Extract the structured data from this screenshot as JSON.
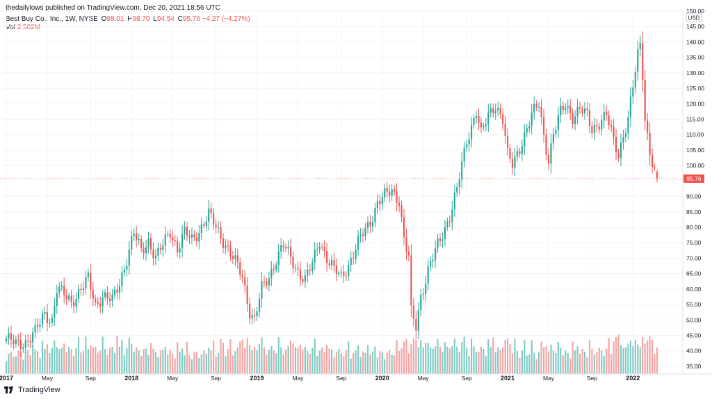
{
  "header": {
    "publisher_text": "thedailylows published on TradingView.com, Dec 20, 2021 18:56 UTC"
  },
  "info": {
    "symbol": "Best Buy Co., Inc., 1W, NYSE",
    "o_label": "O",
    "o_value": "98.01",
    "h_label": "H",
    "h_value": "98.70",
    "l_label": "L",
    "l_value": "94.54",
    "c_label": "C",
    "c_value": "95.76",
    "change": "−4.27 (−4.27%)",
    "vol_label": "Vol",
    "vol_value": "2.502M"
  },
  "footer": {
    "brand": "TradingView"
  },
  "colors": {
    "up": "#26a69a",
    "down": "#ef5350",
    "up_vol": "#80cbc4",
    "down_vol": "#f4a3a3",
    "grid": "#f0f3fa",
    "price_line": "#ef5350"
  },
  "chart_data": {
    "type": "candlestick",
    "title": "Best Buy Co., Inc., 1W, NYSE",
    "currency": "USD",
    "ylim": [
      32.5,
      150
    ],
    "y_ticks": [
      "150.00",
      "145.00",
      "140.00",
      "135.00",
      "130.00",
      "125.00",
      "120.00",
      "115.00",
      "110.00",
      "105.00",
      "100.00",
      "90.00",
      "85.00",
      "80.00",
      "75.00",
      "70.00",
      "65.00",
      "60.00",
      "55.00",
      "50.00",
      "45.00",
      "40.00",
      "35.00"
    ],
    "x_ticks": [
      {
        "label": "2017",
        "week": 0
      },
      {
        "label": "May",
        "week": 17
      },
      {
        "label": "Sep",
        "week": 35
      },
      {
        "label": "2018",
        "week": 52
      },
      {
        "label": "May",
        "week": 69
      },
      {
        "label": "Sep",
        "week": 87
      },
      {
        "label": "2019",
        "week": 104
      },
      {
        "label": "May",
        "week": 121
      },
      {
        "label": "Sep",
        "week": 139
      },
      {
        "label": "2020",
        "week": 156
      },
      {
        "label": "May",
        "week": 173
      },
      {
        "label": "Sep",
        "week": 191
      },
      {
        "label": "2021",
        "week": 208
      },
      {
        "label": "May",
        "week": 225
      },
      {
        "label": "Sep",
        "week": 243
      },
      {
        "label": "2022",
        "week": 260
      }
    ],
    "last_price": 95.76,
    "last_price_label": "95.76",
    "anchors": [
      [
        0,
        44
      ],
      [
        4,
        42
      ],
      [
        8,
        43
      ],
      [
        12,
        46
      ],
      [
        16,
        52
      ],
      [
        19,
        50
      ],
      [
        21,
        60
      ],
      [
        24,
        58
      ],
      [
        27,
        56
      ],
      [
        31,
        60
      ],
      [
        34,
        63
      ],
      [
        37,
        55
      ],
      [
        40,
        58
      ],
      [
        44,
        56
      ],
      [
        47,
        62
      ],
      [
        50,
        70
      ],
      [
        53,
        78
      ],
      [
        56,
        72
      ],
      [
        59,
        76
      ],
      [
        62,
        70
      ],
      [
        65,
        74
      ],
      [
        68,
        79
      ],
      [
        71,
        73
      ],
      [
        74,
        78
      ],
      [
        77,
        76
      ],
      [
        80,
        79
      ],
      [
        84,
        84
      ],
      [
        87,
        80
      ],
      [
        90,
        76
      ],
      [
        94,
        70
      ],
      [
        98,
        64
      ],
      [
        101,
        53
      ],
      [
        103,
        50
      ],
      [
        106,
        60
      ],
      [
        109,
        64
      ],
      [
        112,
        70
      ],
      [
        115,
        74
      ],
      [
        118,
        70
      ],
      [
        121,
        66
      ],
      [
        124,
        63
      ],
      [
        127,
        68
      ],
      [
        130,
        76
      ],
      [
        133,
        70
      ],
      [
        136,
        66
      ],
      [
        139,
        64
      ],
      [
        142,
        68
      ],
      [
        145,
        73
      ],
      [
        148,
        78
      ],
      [
        151,
        82
      ],
      [
        154,
        88
      ],
      [
        157,
        90
      ],
      [
        160,
        92
      ],
      [
        163,
        89
      ],
      [
        165,
        76
      ],
      [
        167,
        70
      ],
      [
        168,
        52
      ],
      [
        170,
        48
      ],
      [
        172,
        58
      ],
      [
        175,
        66
      ],
      [
        178,
        72
      ],
      [
        181,
        78
      ],
      [
        184,
        84
      ],
      [
        187,
        92
      ],
      [
        189,
        100
      ],
      [
        191,
        108
      ],
      [
        193,
        113
      ],
      [
        195,
        118
      ],
      [
        197,
        110
      ],
      [
        200,
        116
      ],
      [
        203,
        120
      ],
      [
        206,
        115
      ],
      [
        208,
        103
      ],
      [
        210,
        100
      ],
      [
        212,
        104
      ],
      [
        215,
        110
      ],
      [
        218,
        116
      ],
      [
        221,
        120
      ],
      [
        223,
        110
      ],
      [
        225,
        102
      ],
      [
        227,
        110
      ],
      [
        230,
        117
      ],
      [
        232,
        120
      ],
      [
        235,
        116
      ],
      [
        238,
        118
      ],
      [
        241,
        116
      ],
      [
        243,
        112
      ],
      [
        246,
        114
      ],
      [
        249,
        116
      ],
      [
        252,
        108
      ],
      [
        254,
        104
      ],
      [
        256,
        110
      ],
      [
        258,
        115
      ],
      [
        260,
        125
      ],
      [
        262,
        136
      ],
      [
        263,
        139
      ],
      [
        264,
        130
      ],
      [
        265,
        116
      ],
      [
        266,
        110
      ],
      [
        267,
        104
      ],
      [
        268,
        101
      ],
      [
        269,
        98
      ],
      [
        270,
        95.76
      ]
    ],
    "volume_note": "weekly volume bars, relative scale, colored by candle direction"
  }
}
